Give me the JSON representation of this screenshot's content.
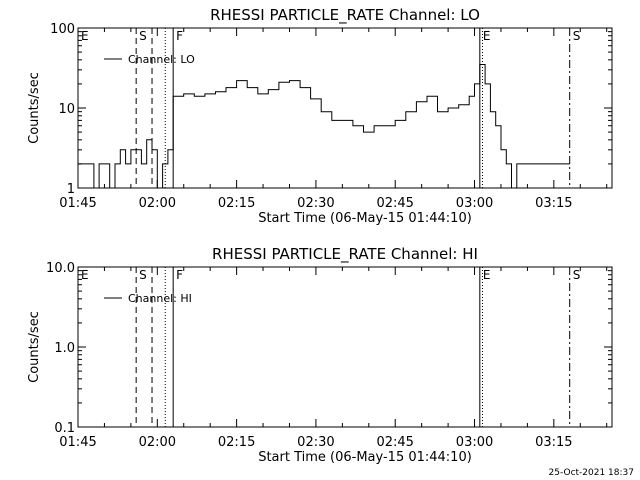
{
  "chart_data": [
    {
      "type": "line",
      "title": "RHESSI PARTICLE_RATE Channel: LO",
      "xlabel": "Start Time (06-May-15 01:44:10)",
      "ylabel": "Counts/sec",
      "yscale": "log",
      "ylim": [
        1,
        100
      ],
      "xlim": [
        "01:45",
        "03:26"
      ],
      "x_ticks": [
        "01:45",
        "02:00",
        "02:15",
        "02:30",
        "02:45",
        "03:00",
        "03:15"
      ],
      "y_ticks": [
        "1",
        "10",
        "100"
      ],
      "legend": {
        "label": "Channel: LO",
        "position": "top-left"
      },
      "markers": [
        {
          "label": "E",
          "time": "01:45",
          "style": "dash-dot"
        },
        {
          "label": "S",
          "time": "01:56",
          "style": "dashed"
        },
        {
          "label": "",
          "time": "01:59",
          "style": "dashed"
        },
        {
          "label": "",
          "time": "02:01.5",
          "style": "dotted"
        },
        {
          "label": "F",
          "time": "02:03",
          "style": "solid"
        },
        {
          "label": "E",
          "time": "03:01",
          "style": "solid"
        },
        {
          "label": "",
          "time": "03:01.5",
          "style": "dotted"
        },
        {
          "label": "S",
          "time": "03:18",
          "style": "dash-dot"
        }
      ],
      "series": [
        {
          "name": "Channel: LO",
          "x": [
            "01:45",
            "01:47",
            "01:48",
            "01:49",
            "01:50",
            "01:51",
            "01:52",
            "01:53",
            "01:54",
            "01:55",
            "01:56",
            "01:57",
            "01:58",
            "01:59",
            "02:00",
            "02:01",
            "02:02",
            "02:03",
            "02:05",
            "02:07",
            "02:09",
            "02:11",
            "02:13",
            "02:15",
            "02:17",
            "02:19",
            "02:21",
            "02:23",
            "02:25",
            "02:27",
            "02:29",
            "02:31",
            "02:33",
            "02:35",
            "02:37",
            "02:39",
            "02:41",
            "02:43",
            "02:45",
            "02:47",
            "02:49",
            "02:51",
            "02:53",
            "02:55",
            "02:57",
            "02:59",
            "03:00",
            "03:01",
            "03:02",
            "03:03",
            "03:04",
            "03:05",
            "03:06",
            "03:07",
            "03:08",
            "03:10",
            "03:12",
            "03:14",
            "03:16",
            "03:18"
          ],
          "y": [
            2,
            2,
            1,
            2,
            2,
            1,
            2,
            3,
            2,
            3,
            3,
            2,
            4,
            3,
            1,
            2,
            3,
            14,
            15,
            14,
            15,
            16,
            18,
            22,
            18,
            15,
            17,
            21,
            22,
            18,
            13,
            9,
            7,
            7,
            6,
            5,
            6,
            6,
            7,
            9,
            12,
            14,
            9,
            10,
            11,
            14,
            20,
            35,
            20,
            9,
            6,
            3,
            2,
            1,
            2,
            2,
            2,
            2,
            2,
            2
          ]
        }
      ]
    },
    {
      "type": "line",
      "title": "RHESSI PARTICLE_RATE Channel: HI",
      "xlabel": "Start Time (06-May-15 01:44:10)",
      "ylabel": "Counts/sec",
      "yscale": "log",
      "ylim": [
        0.1,
        10
      ],
      "xlim": [
        "01:45",
        "03:26"
      ],
      "x_ticks": [
        "01:45",
        "02:00",
        "02:15",
        "02:30",
        "02:45",
        "03:00",
        "03:15"
      ],
      "y_ticks": [
        "0.1",
        "1.0",
        "10.0"
      ],
      "legend": {
        "label": "Channel: HI",
        "position": "top-left"
      },
      "markers": [
        {
          "label": "E",
          "time": "01:45",
          "style": "dash-dot"
        },
        {
          "label": "S",
          "time": "01:56",
          "style": "dashed"
        },
        {
          "label": "",
          "time": "01:59",
          "style": "dashed"
        },
        {
          "label": "",
          "time": "02:01.5",
          "style": "dotted"
        },
        {
          "label": "F",
          "time": "02:03",
          "style": "solid"
        },
        {
          "label": "E",
          "time": "03:01",
          "style": "solid"
        },
        {
          "label": "",
          "time": "03:01.5",
          "style": "dotted"
        },
        {
          "label": "S",
          "time": "03:18",
          "style": "dash-dot"
        }
      ],
      "series": [
        {
          "name": "Channel: HI",
          "x": [],
          "y": []
        }
      ]
    }
  ],
  "footer": {
    "date_label": "25-Oct-2021 18:37"
  }
}
